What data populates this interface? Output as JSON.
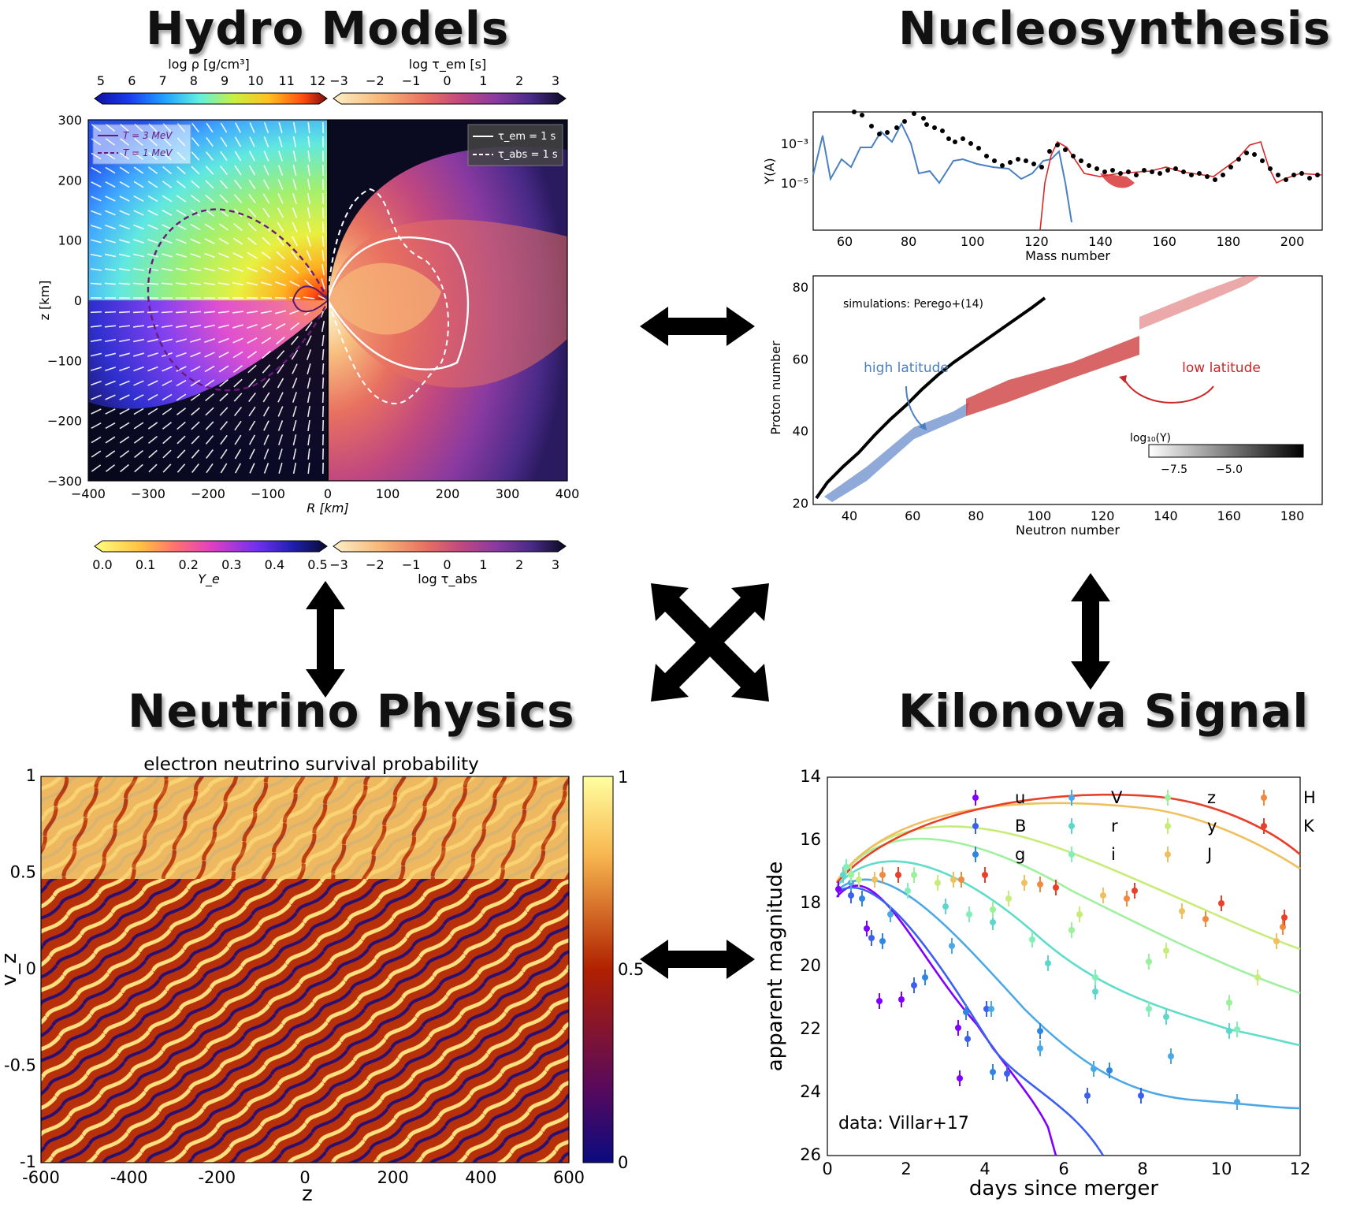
{
  "titles": {
    "hydro": "Hydro Models",
    "nucleo": "Nucleosynthesis",
    "neutrino": "Neutrino Physics",
    "kilonova": "Kilonova Signal"
  },
  "hydro": {
    "cb_rho_label": "log ρ [g/cm³]",
    "cb_rho_ticks": [
      "5",
      "6",
      "7",
      "8",
      "9",
      "10",
      "11",
      "12"
    ],
    "cb_tem_label": "log τ_em [s]",
    "cb_tem_ticks": [
      "−3",
      "−2",
      "−1",
      "0",
      "1",
      "2",
      "3"
    ],
    "cb_ye_label": "Y_e",
    "cb_ye_ticks": [
      "0.0",
      "0.1",
      "0.2",
      "0.3",
      "0.4",
      "0.5"
    ],
    "cb_tabs_label": "log τ_abs",
    "cb_tabs_ticks": [
      "−3",
      "−2",
      "−1",
      "0",
      "1",
      "2",
      "3"
    ],
    "xlabel": "R [km]",
    "ylabel": "z [km]",
    "xticks": [
      "−400",
      "−300",
      "−200",
      "−100",
      "0",
      "100",
      "200",
      "300",
      "400"
    ],
    "yticks": [
      "300",
      "200",
      "100",
      "0",
      "−100",
      "−200",
      "−300"
    ],
    "legend_left": [
      "T = 3 MeV",
      "T = 1 MeV"
    ],
    "legend_right": [
      "τ_em = 1 s",
      "τ_abs = 1 s"
    ],
    "colors": {
      "t3": "#6a1a7a",
      "t1": "#6a1a7a"
    }
  },
  "nucleo_top": {
    "ylabel": "Y(A)",
    "xlabel": "Mass number",
    "yticks": [
      "10⁻³",
      "10⁻⁵"
    ],
    "xticks": [
      "60",
      "80",
      "100",
      "120",
      "140",
      "160",
      "180",
      "200"
    ],
    "colors": {
      "blue": "#4a7fc0",
      "red": "#d42a2a"
    }
  },
  "nucleo_bottom": {
    "annotation": "simulations: Perego+(14)",
    "high_label": "high latitude",
    "low_label": "low latitude",
    "ylabel": "Proton number",
    "xlabel": "Neutron number",
    "yticks": [
      "80",
      "60",
      "40",
      "20"
    ],
    "xticks": [
      "40",
      "60",
      "80",
      "100",
      "120",
      "140",
      "160",
      "180"
    ],
    "cb_label": "log₁₀(Y)",
    "cb_ticks": [
      "−7.5",
      "−5.0"
    ]
  },
  "neutrino": {
    "title": "electron neutrino survival probability",
    "ylabel": "v_z",
    "xlabel": "z",
    "yticks": [
      "1",
      "0.5",
      "0",
      "-0.5",
      "-1"
    ],
    "xticks": [
      "-600",
      "-400",
      "-200",
      "0",
      "200",
      "400",
      "600"
    ],
    "cb_ticks": [
      "1",
      "0.5",
      "0"
    ]
  },
  "kilonova": {
    "ylabel": "apparent magnitude",
    "xlabel": "days since merger",
    "annotation": "data: Villar+17",
    "yticks": [
      "14",
      "16",
      "18",
      "20",
      "22",
      "24",
      "26"
    ],
    "xticks": [
      "0",
      "2",
      "4",
      "6",
      "8",
      "10",
      "12"
    ],
    "legend": [
      {
        "band": "u",
        "color": "#7f00ff"
      },
      {
        "band": "B",
        "color": "#3c5ff0"
      },
      {
        "band": "g",
        "color": "#2e86e0"
      },
      {
        "band": "V",
        "color": "#4aa8e6"
      },
      {
        "band": "r",
        "color": "#5fd6cc"
      },
      {
        "band": "i",
        "color": "#80f0b8"
      },
      {
        "band": "z",
        "color": "#9cf09a"
      },
      {
        "band": "y",
        "color": "#c8ec7a"
      },
      {
        "band": "J",
        "color": "#f0c060"
      },
      {
        "band": "H",
        "color": "#f08a40"
      },
      {
        "band": "K",
        "color": "#e8402a"
      }
    ]
  }
}
